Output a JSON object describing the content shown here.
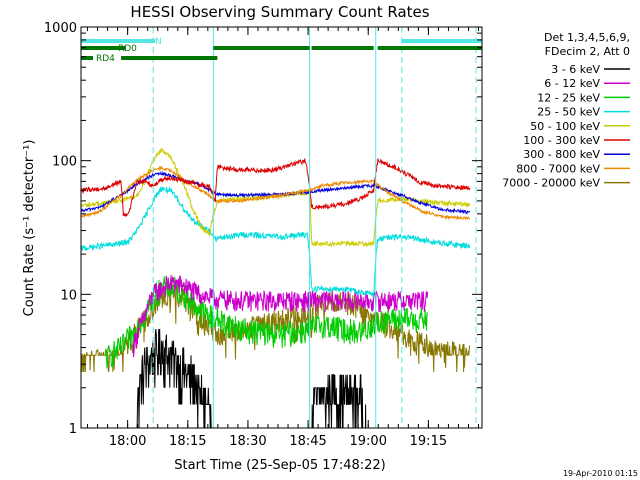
{
  "chart_data": {
    "type": "line",
    "title": "HESSI Observing Summary Count Rates",
    "xlabel": "Start Time (25-Sep-05 17:48:22)",
    "ylabel": "Count Rate (s⁻¹ detector⁻¹)",
    "yscale": "log",
    "ylim": [
      1,
      1000
    ],
    "xlim_minutes": [
      0,
      100
    ],
    "x_tick_labels": [
      "18:00",
      "18:15",
      "18:30",
      "18:45",
      "19:00",
      "19:15"
    ],
    "x_tick_minutes": [
      11.63,
      26.63,
      41.63,
      56.63,
      71.63,
      86.63
    ],
    "y_tick_labels": [
      "1",
      "10",
      "100",
      "1000"
    ],
    "y_tick_values": [
      1,
      10,
      100,
      1000
    ],
    "legend_header": [
      "Det 1,3,4,5,6,9,",
      "FDecim 2, Att 0"
    ],
    "legend_position": "right",
    "timestamp": "19-Apr-2010 01:15",
    "flags": [
      {
        "name": "N",
        "color": "#55e5e5",
        "segments": [
          [
            0,
            18.5
          ],
          [
            80,
            100
          ]
        ]
      },
      {
        "name": "RD0",
        "color": "#007700",
        "segments": [
          [
            0,
            11
          ],
          [
            33,
            57
          ],
          [
            57.5,
            73
          ],
          [
            74,
            100
          ]
        ]
      },
      {
        "name": "RD4",
        "color": "#007700",
        "segments": [
          [
            0,
            3
          ],
          [
            10,
            34
          ]
        ]
      }
    ],
    "markers": [
      {
        "minute": 0,
        "style": "solid"
      },
      {
        "minute": 18,
        "style": "dashed"
      },
      {
        "minute": 33,
        "style": "solid"
      },
      {
        "minute": 57,
        "style": "solid"
      },
      {
        "minute": 73.5,
        "style": "solid"
      },
      {
        "minute": 80,
        "style": "dashed"
      },
      {
        "minute": 98.5,
        "style": "dashed"
      }
    ],
    "series": [
      {
        "name": "3 - 6 keV",
        "color": "#000000",
        "x": [
          7.5,
          10,
          13,
          14,
          16,
          18,
          20,
          22,
          24,
          26,
          28,
          30,
          32,
          34,
          57,
          58,
          62,
          66,
          70,
          72.5
        ],
        "y": [
          0,
          0,
          0,
          1.5,
          3.0,
          3.5,
          4.0,
          3.5,
          3.0,
          2.6,
          2.2,
          1.7,
          1.4,
          0,
          0,
          1.5,
          1.9,
          1.8,
          1.6,
          0
        ]
      },
      {
        "name": "6 - 12 keV",
        "color": "#cc00cc",
        "x": [
          13,
          16,
          18,
          20,
          22,
          24,
          26,
          28,
          30,
          32,
          34,
          40,
          50,
          60,
          70,
          74,
          80,
          85,
          86.5
        ],
        "y": [
          4.0,
          7.0,
          10,
          11,
          12,
          12,
          11.5,
          10.5,
          10,
          9.5,
          9.2,
          9.0,
          9.0,
          9.0,
          9.0,
          9.0,
          9.0,
          9.0,
          9.0
        ]
      },
      {
        "name": "12 - 25 keV",
        "color": "#00cc00",
        "x": [
          6,
          10,
          13,
          16,
          18,
          20,
          22,
          24,
          26,
          28,
          30,
          32,
          34,
          40,
          50,
          57,
          60,
          65,
          70,
          73,
          76,
          80,
          84,
          86.5
        ],
        "y": [
          3.3,
          4.0,
          5.0,
          7.0,
          9.5,
          11,
          11.5,
          11,
          10,
          8.5,
          7.5,
          7.0,
          6.5,
          5.5,
          5.0,
          5.5,
          6.0,
          5.5,
          5.2,
          6.0,
          6.5,
          6.5,
          6.5,
          6.5
        ]
      },
      {
        "name": "25 - 50 keV",
        "color": "#00dddd",
        "x": [
          0,
          10,
          12,
          14,
          16,
          18,
          20,
          22,
          24,
          26,
          28,
          30,
          32,
          33.5,
          40,
          50,
          56.5,
          57.5,
          65,
          73,
          74,
          80,
          90,
          97
        ],
        "y": [
          22,
          24,
          25,
          30,
          38,
          50,
          62,
          60,
          52,
          42,
          36,
          32,
          30,
          26,
          28,
          27,
          28,
          11,
          11,
          10,
          26,
          27,
          24,
          23
        ]
      },
      {
        "name": "50 - 100 keV",
        "color": "#cccc00",
        "x": [
          0,
          10,
          14,
          16,
          18,
          20,
          22,
          24,
          26,
          28,
          30,
          32,
          34,
          40,
          50,
          57,
          57.5,
          65,
          73,
          74,
          80,
          90,
          97
        ],
        "y": [
          46,
          50,
          55,
          70,
          100,
          120,
          110,
          85,
          62,
          42,
          32,
          28,
          50,
          52,
          55,
          58,
          24,
          24,
          24,
          50,
          52,
          48,
          47
        ]
      },
      {
        "name": "100 - 300 keV",
        "color": "#dd0000",
        "x": [
          0,
          6,
          8,
          10,
          10.5,
          12,
          14,
          16,
          18,
          20,
          22,
          24,
          26,
          28,
          30,
          32,
          33.5,
          34,
          40,
          48,
          56,
          57.5,
          60,
          65,
          70,
          73,
          74,
          78,
          84,
          88,
          97
        ],
        "y": [
          60,
          62,
          66,
          70,
          40,
          40,
          70,
          70,
          65,
          72,
          75,
          72,
          70,
          68,
          66,
          64,
          50,
          90,
          85,
          85,
          100,
          45,
          45,
          47,
          52,
          60,
          100,
          90,
          70,
          65,
          62
        ]
      },
      {
        "name": "300 - 800 keV",
        "color": "#0000dd",
        "x": [
          0,
          5,
          10,
          15,
          18,
          20,
          22,
          24,
          26,
          28,
          30,
          32,
          34,
          40,
          50,
          57,
          60,
          65,
          70,
          73,
          75,
          80,
          85,
          90,
          97
        ],
        "y": [
          42,
          45,
          55,
          70,
          78,
          80,
          78,
          75,
          70,
          68,
          66,
          60,
          56,
          55,
          56,
          58,
          60,
          62,
          64,
          65,
          62,
          55,
          48,
          43,
          41
        ]
      },
      {
        "name": "800 - 7000 keV",
        "color": "#ee8800",
        "x": [
          0,
          5,
          10,
          15,
          18,
          20,
          22,
          24,
          26,
          28,
          30,
          32,
          34,
          40,
          50,
          57,
          60,
          65,
          70,
          73,
          75,
          80,
          85,
          90,
          97
        ],
        "y": [
          38,
          42,
          55,
          75,
          85,
          88,
          85,
          78,
          70,
          64,
          60,
          55,
          50,
          50,
          55,
          60,
          65,
          68,
          70,
          70,
          62,
          50,
          42,
          38,
          37
        ]
      },
      {
        "name": "7000 - 20000 keV",
        "color": "#887700",
        "x": [
          0,
          3,
          6,
          10,
          13,
          16,
          18,
          20,
          22,
          24,
          26,
          28,
          30,
          32,
          34,
          40,
          45,
          50,
          57,
          60,
          65,
          70,
          73,
          76,
          80,
          84,
          90,
          97
        ],
        "y": [
          3.0,
          3.2,
          3.3,
          3.5,
          5.0,
          6.5,
          8.0,
          9.5,
          10,
          10,
          9.0,
          8.0,
          6.5,
          5.5,
          5.0,
          5.5,
          6.0,
          6.5,
          7.5,
          8.5,
          9.0,
          8.0,
          6.5,
          6.0,
          5.0,
          4.5,
          3.8,
          3.5
        ]
      }
    ]
  }
}
